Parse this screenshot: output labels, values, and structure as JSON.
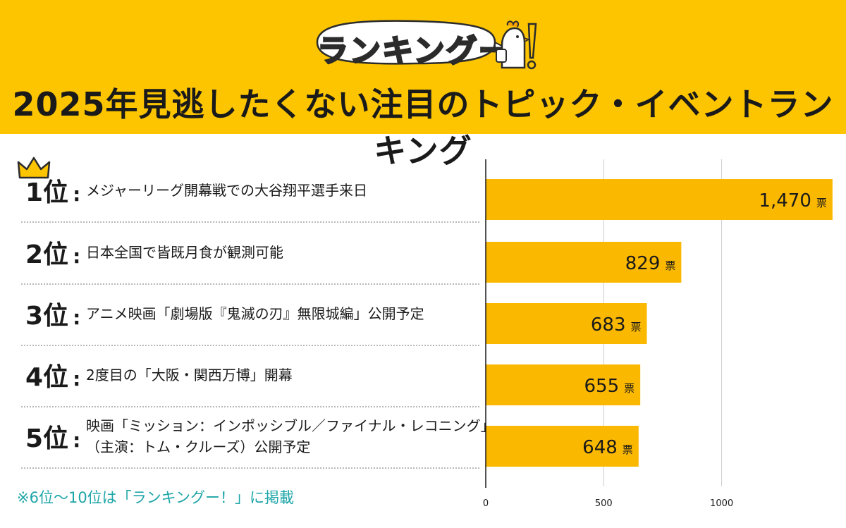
{
  "header": {
    "logo_text": "ランキングー",
    "logo_exclaim": "!",
    "title": "2025年見逃したくない注目のトピック・イベントランキング"
  },
  "rows": [
    {
      "rank": "1位",
      "colon": ":",
      "topic_lines": [
        "メジャーリーグ開幕戦での大谷翔平選手来日"
      ]
    },
    {
      "rank": "2位",
      "colon": ":",
      "topic_lines": [
        "日本全国で皆既月食が観測可能"
      ]
    },
    {
      "rank": "3位",
      "colon": ":",
      "topic_lines": [
        "アニメ映画「劇場版『鬼滅の刃』無限城編」公開予定"
      ]
    },
    {
      "rank": "4位",
      "colon": ":",
      "topic_lines": [
        "2度目の「大阪・関西万博」開幕"
      ]
    },
    {
      "rank": "5位",
      "colon": ":",
      "topic_lines": [
        "映画「ミッション：インポッシブル／ファイナル・レコニング」",
        "（主演：トム・クルーズ）公開予定"
      ]
    }
  ],
  "footnote": "※6位〜10位は「ランキングー！」に掲載",
  "colors": {
    "header_bg": "#fdc500",
    "bar": "#fbb800",
    "footnote": "#1ea5a8",
    "grid": "#cccccc"
  },
  "chart_data": {
    "type": "bar",
    "orientation": "horizontal",
    "categories": [
      "1位",
      "2位",
      "3位",
      "4位",
      "5位"
    ],
    "values": [
      1470,
      829,
      683,
      655,
      648
    ],
    "value_labels": [
      "1,470",
      "829",
      "683",
      "655",
      "648"
    ],
    "unit": "票",
    "xlim": [
      0,
      1470
    ],
    "xticks": [
      0,
      500,
      1000
    ],
    "xtick_labels": [
      "0",
      "500",
      "1000"
    ],
    "grid": true
  }
}
